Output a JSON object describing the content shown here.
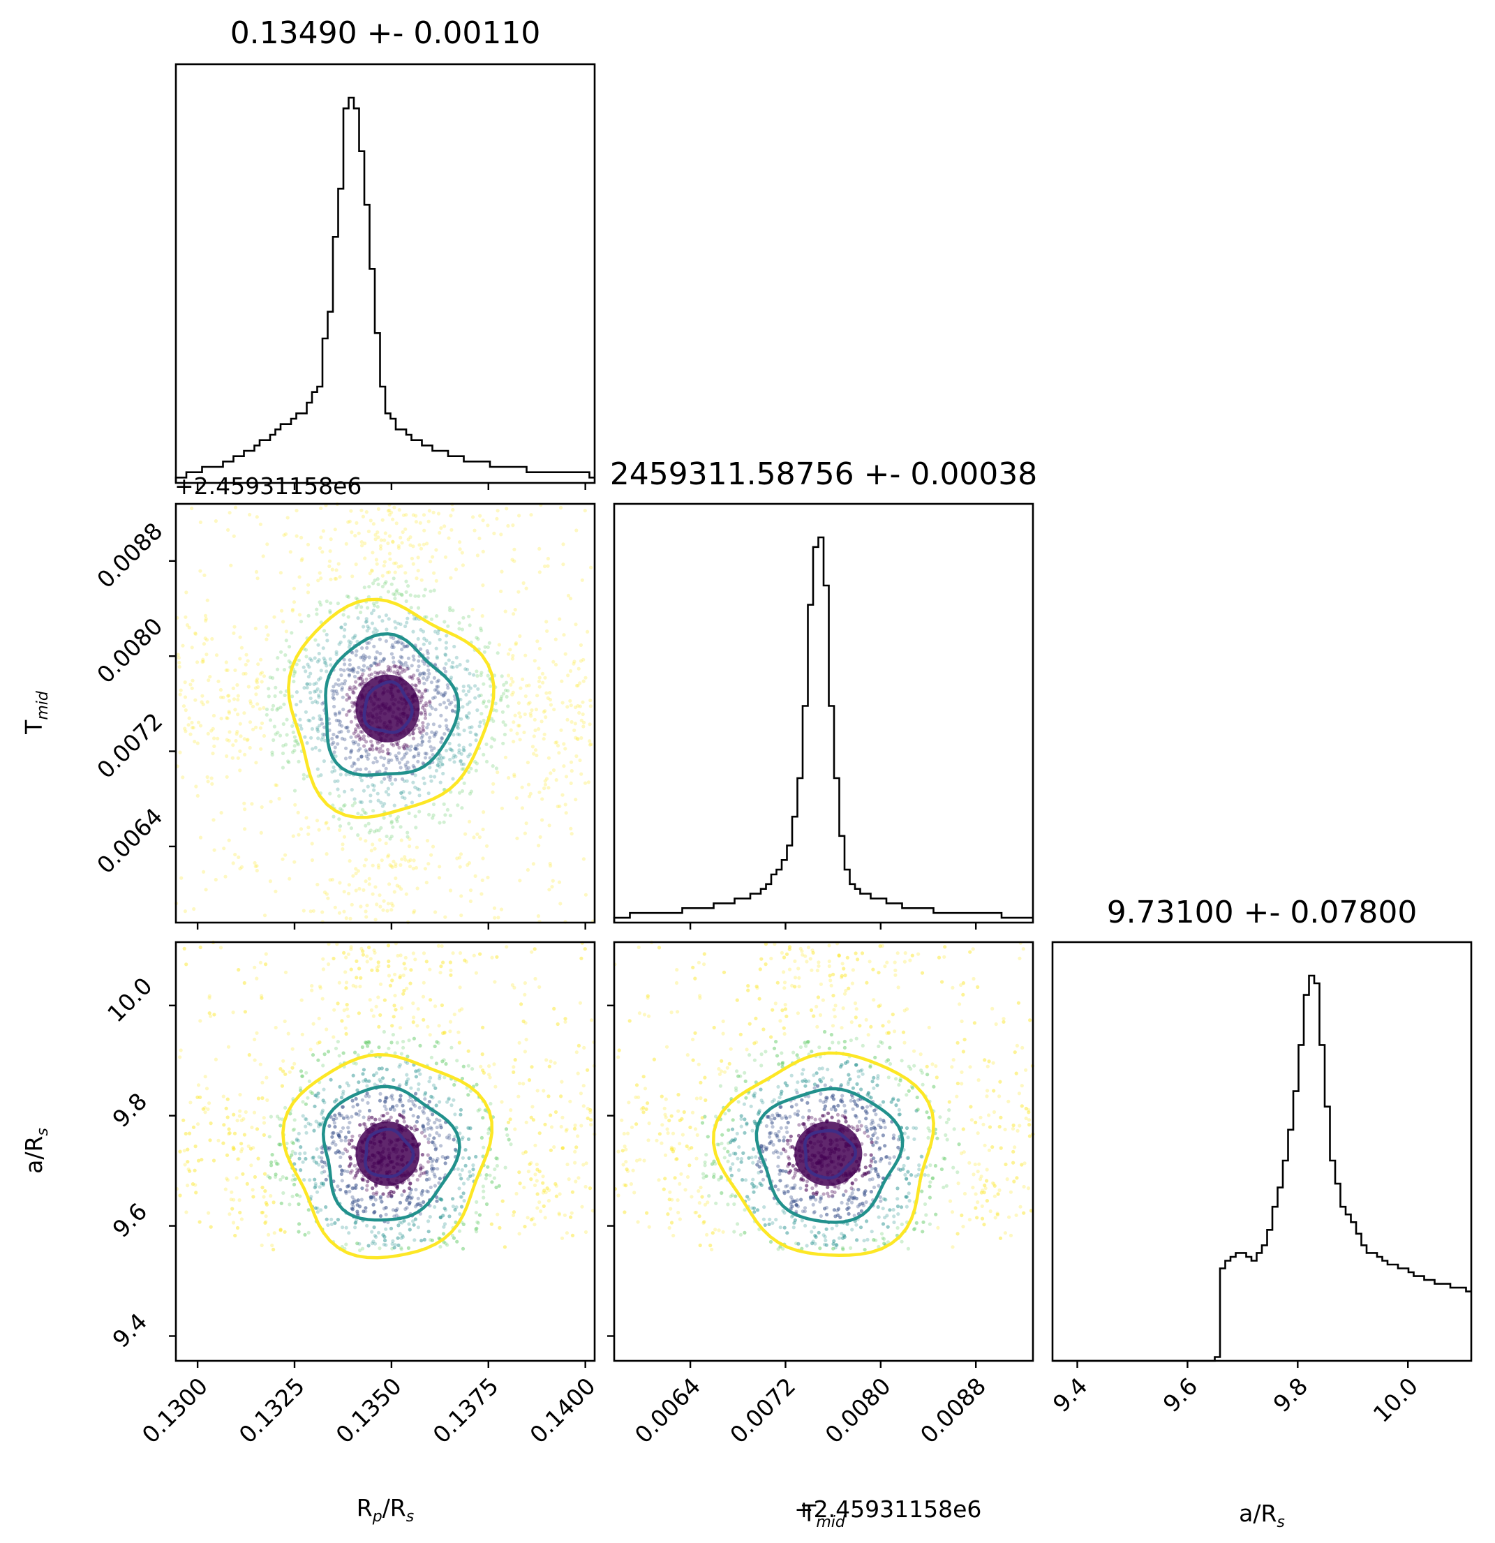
{
  "chart_data": {
    "type": "corner",
    "parameters": [
      {
        "key": "rp",
        "label": "R_p/R_s",
        "label_main": "R",
        "label_sub": "p",
        "label_tail": "/R",
        "label_sub2": "s",
        "title": "0.13490 +- 0.00110",
        "median": 0.1349,
        "sigma": 0.0011,
        "range": [
          0.12944,
          0.14024
        ],
        "ticks": [
          "0.1300",
          "0.1325",
          "0.1350",
          "0.1375",
          "0.1400"
        ],
        "tick_values": [
          0.13,
          0.1325,
          0.135,
          0.1375,
          0.14
        ]
      },
      {
        "key": "tmid",
        "label": "T_mid",
        "label_main": "T",
        "label_sub": "mid",
        "label_tail": "",
        "label_sub2": "",
        "title": "2459311.58756 +- 0.00038",
        "median": 2459311.58756,
        "sigma": 0.00038,
        "offset_text": "+2.45931158e6",
        "range": [
          0.00576,
          0.00928
        ],
        "ticks": [
          "0.0064",
          "0.0072",
          "0.0080",
          "0.0088"
        ],
        "tick_values": [
          0.0064,
          0.0072,
          0.008,
          0.0088
        ]
      },
      {
        "key": "ars",
        "label": "a/R_s",
        "label_main": "a/R",
        "label_sub": "s",
        "label_tail": "",
        "label_sub2": "",
        "title": "9.73100 +- 0.07800",
        "median": 9.731,
        "sigma": 0.078,
        "range": [
          9.355,
          10.115
        ],
        "ticks": [
          "9.4",
          "9.6",
          "9.8",
          "10.0"
        ],
        "tick_values": [
          9.4,
          9.6,
          9.8,
          10.0
        ]
      }
    ],
    "histograms": {
      "rp": {
        "bins": 80,
        "approx_counts": [
          1,
          1,
          2,
          2,
          2,
          3,
          3,
          3,
          3,
          4,
          4,
          5,
          5,
          6,
          6,
          7,
          8,
          8,
          9,
          10,
          11,
          11,
          12,
          13,
          13,
          15,
          17,
          18,
          27,
          32,
          46,
          55,
          70,
          72,
          70,
          62,
          52,
          40,
          28,
          18,
          13,
          12,
          10,
          10,
          9,
          8,
          8,
          7,
          7,
          6,
          6,
          6,
          5,
          5,
          5,
          4,
          4,
          4,
          4,
          4,
          3,
          3,
          3,
          3,
          3,
          3,
          3,
          2,
          2,
          2,
          2,
          2,
          2,
          2,
          2,
          2,
          2,
          2,
          2,
          1
        ]
      },
      "tmid": {
        "bins": 80,
        "approx_counts": [
          1,
          1,
          1,
          2,
          2,
          2,
          2,
          2,
          2,
          2,
          2,
          2,
          2,
          3,
          3,
          3,
          3,
          3,
          3,
          4,
          4,
          4,
          4,
          5,
          5,
          5,
          6,
          6,
          7,
          8,
          10,
          11,
          13,
          16,
          22,
          30,
          45,
          66,
          78,
          80,
          70,
          45,
          30,
          18,
          11,
          8,
          7,
          6,
          6,
          5,
          5,
          5,
          4,
          4,
          4,
          3,
          3,
          3,
          3,
          3,
          3,
          2,
          2,
          2,
          2,
          2,
          2,
          2,
          2,
          2,
          2,
          2,
          2,
          2,
          1,
          1,
          1,
          1,
          1,
          1
        ]
      },
      "ars": {
        "bins": 80,
        "approx_counts": [
          0,
          0,
          0,
          0,
          0,
          0,
          0,
          0,
          0,
          0,
          0,
          0,
          0,
          0,
          0,
          0,
          0,
          0,
          0,
          0,
          0,
          0,
          0,
          0,
          0,
          0,
          0,
          0,
          0,
          0,
          0,
          1,
          24,
          26,
          27,
          28,
          28,
          27,
          26,
          28,
          30,
          34,
          40,
          45,
          52,
          60,
          70,
          82,
          95,
          100,
          98,
          82,
          66,
          52,
          46,
          40,
          38,
          36,
          33,
          30,
          28,
          28,
          27,
          26,
          25,
          25,
          24,
          24,
          23,
          22,
          22,
          21,
          21,
          20,
          20,
          20,
          19,
          19,
          19,
          18
        ]
      }
    },
    "contour_levels": [
      {
        "name": "inner",
        "color": "#3e2d87"
      },
      {
        "name": "middle",
        "color": "#21918c"
      },
      {
        "name": "outer",
        "color": "#fde725"
      }
    ],
    "scatter_colors": [
      "#440154",
      "#3b528b",
      "#21918c",
      "#5ec962",
      "#fde725"
    ],
    "grid": false
  }
}
